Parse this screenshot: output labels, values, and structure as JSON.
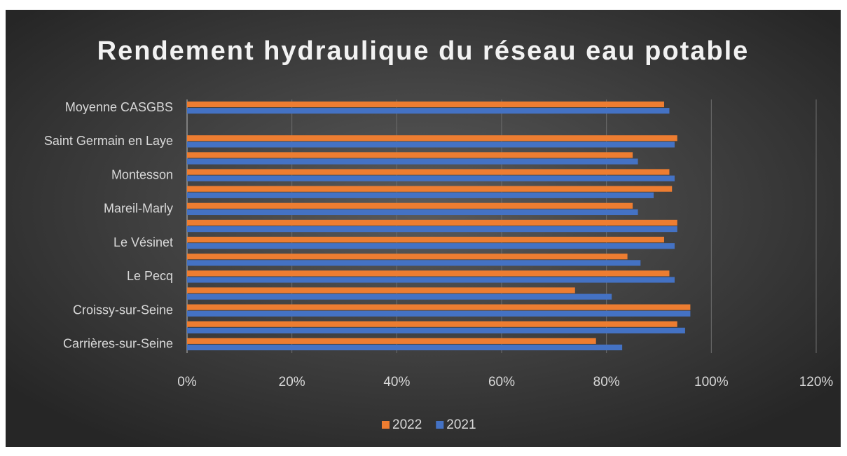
{
  "chart_data": {
    "type": "hbar",
    "title": "Rendement hydraulique du réseau eau potable",
    "categories": [
      "Carrières-sur-Seine",
      null,
      "Croissy-sur-Seine",
      null,
      "Le Pecq",
      null,
      "Le Vésinet",
      null,
      "Mareil-Marly",
      null,
      "Montesson",
      null,
      "Saint Germain en Laye",
      null,
      "Moyenne CASGBS"
    ],
    "series": [
      {
        "name": "2022",
        "color": "#ed7d31",
        "values": [
          78,
          93.5,
          96,
          74,
          92,
          84,
          91,
          93.5,
          85,
          92.5,
          92,
          85,
          93.5,
          null,
          91
        ]
      },
      {
        "name": "2021",
        "color": "#4472c4",
        "values": [
          83,
          95,
          96,
          81,
          93,
          86.5,
          93,
          93.5,
          86,
          89,
          93,
          86,
          93,
          null,
          92
        ]
      }
    ],
    "xlim": [
      0,
      120
    ],
    "xticks": [
      {
        "value": 0,
        "label": "0%"
      },
      {
        "value": 20,
        "label": "20%"
      },
      {
        "value": 40,
        "label": "40%"
      },
      {
        "value": 60,
        "label": "60%"
      },
      {
        "value": 80,
        "label": "80%"
      },
      {
        "value": 100,
        "label": "100%"
      },
      {
        "value": 120,
        "label": "120%"
      }
    ],
    "grid": true,
    "legend": "bottom"
  }
}
